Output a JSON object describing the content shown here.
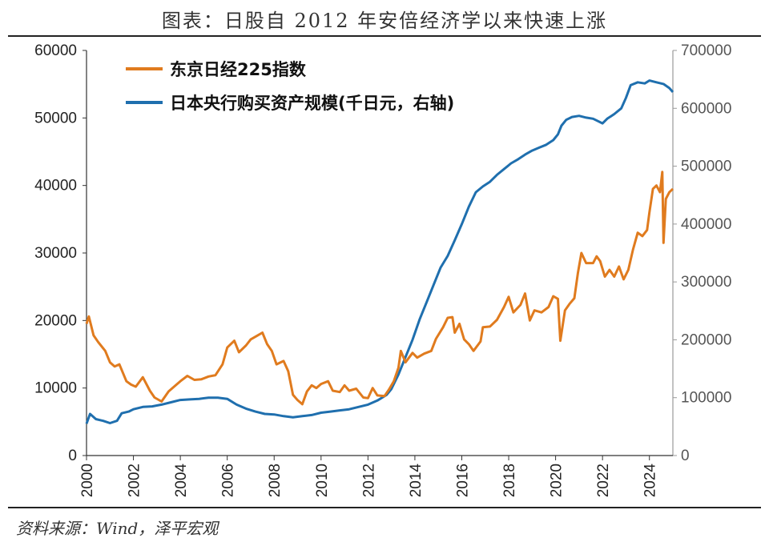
{
  "title": "图表：日股自 2012 年安倍经济学以来快速上涨",
  "source": "资料来源：Wind，泽平宏观",
  "chart_data": {
    "type": "line",
    "x_range": [
      2000,
      2025
    ],
    "x_ticks": [
      "2000",
      "2002",
      "2004",
      "2006",
      "2008",
      "2010",
      "2012",
      "2014",
      "2016",
      "2018",
      "2020",
      "2022",
      "2024"
    ],
    "y_left": {
      "ticks": [
        "0",
        "10000",
        "20000",
        "30000",
        "40000",
        "50000",
        "60000"
      ],
      "range": [
        0,
        60000
      ]
    },
    "y_right": {
      "ticks": [
        "0",
        "100000",
        "200000",
        "300000",
        "400000",
        "500000",
        "600000",
        "700000"
      ],
      "range": [
        0,
        700000
      ]
    },
    "legend_position": "top-left",
    "series": [
      {
        "name": "东京日经225指数",
        "axis": "left",
        "color": "#E07B1E",
        "points": [
          [
            2000.0,
            19500
          ],
          [
            2000.1,
            20600
          ],
          [
            2000.3,
            17800
          ],
          [
            2000.5,
            16800
          ],
          [
            2000.8,
            15500
          ],
          [
            2001.0,
            13800
          ],
          [
            2001.2,
            13200
          ],
          [
            2001.4,
            13500
          ],
          [
            2001.7,
            11000
          ],
          [
            2001.9,
            10500
          ],
          [
            2002.1,
            10200
          ],
          [
            2002.4,
            11600
          ],
          [
            2002.7,
            9600
          ],
          [
            2002.9,
            8600
          ],
          [
            2003.2,
            8000
          ],
          [
            2003.5,
            9500
          ],
          [
            2003.8,
            10400
          ],
          [
            2004.0,
            11000
          ],
          [
            2004.3,
            11800
          ],
          [
            2004.6,
            11200
          ],
          [
            2004.9,
            11300
          ],
          [
            2005.2,
            11700
          ],
          [
            2005.5,
            11900
          ],
          [
            2005.8,
            13500
          ],
          [
            2006.0,
            16000
          ],
          [
            2006.3,
            17000
          ],
          [
            2006.5,
            15300
          ],
          [
            2006.8,
            16300
          ],
          [
            2007.0,
            17200
          ],
          [
            2007.3,
            17800
          ],
          [
            2007.5,
            18200
          ],
          [
            2007.7,
            16500
          ],
          [
            2007.9,
            15500
          ],
          [
            2008.1,
            13500
          ],
          [
            2008.4,
            14000
          ],
          [
            2008.6,
            12500
          ],
          [
            2008.8,
            9000
          ],
          [
            2009.0,
            8200
          ],
          [
            2009.2,
            7600
          ],
          [
            2009.4,
            9500
          ],
          [
            2009.6,
            10400
          ],
          [
            2009.8,
            10000
          ],
          [
            2010.0,
            10600
          ],
          [
            2010.3,
            11000
          ],
          [
            2010.5,
            9600
          ],
          [
            2010.8,
            9400
          ],
          [
            2011.0,
            10400
          ],
          [
            2011.2,
            9600
          ],
          [
            2011.5,
            9900
          ],
          [
            2011.8,
            8600
          ],
          [
            2012.0,
            8500
          ],
          [
            2012.2,
            10000
          ],
          [
            2012.4,
            8900
          ],
          [
            2012.7,
            8800
          ],
          [
            2012.9,
            9800
          ],
          [
            2013.1,
            11000
          ],
          [
            2013.3,
            13000
          ],
          [
            2013.4,
            15500
          ],
          [
            2013.6,
            13800
          ],
          [
            2013.9,
            15200
          ],
          [
            2014.1,
            14500
          ],
          [
            2014.4,
            15100
          ],
          [
            2014.7,
            15500
          ],
          [
            2014.9,
            17300
          ],
          [
            2015.2,
            19000
          ],
          [
            2015.4,
            20400
          ],
          [
            2015.6,
            20500
          ],
          [
            2015.7,
            18200
          ],
          [
            2015.9,
            19500
          ],
          [
            2016.1,
            17200
          ],
          [
            2016.3,
            16500
          ],
          [
            2016.5,
            15500
          ],
          [
            2016.8,
            16900
          ],
          [
            2016.9,
            19000
          ],
          [
            2017.2,
            19100
          ],
          [
            2017.5,
            20100
          ],
          [
            2017.8,
            22000
          ],
          [
            2018.0,
            23500
          ],
          [
            2018.2,
            21200
          ],
          [
            2018.5,
            22300
          ],
          [
            2018.7,
            24000
          ],
          [
            2018.9,
            20000
          ],
          [
            2019.1,
            21500
          ],
          [
            2019.4,
            21200
          ],
          [
            2019.7,
            22000
          ],
          [
            2019.9,
            23600
          ],
          [
            2020.1,
            23200
          ],
          [
            2020.2,
            17000
          ],
          [
            2020.4,
            21500
          ],
          [
            2020.6,
            22500
          ],
          [
            2020.8,
            23300
          ],
          [
            2020.95,
            27000
          ],
          [
            2021.1,
            30000
          ],
          [
            2021.3,
            28500
          ],
          [
            2021.6,
            28500
          ],
          [
            2021.75,
            29500
          ],
          [
            2021.9,
            28800
          ],
          [
            2022.1,
            26500
          ],
          [
            2022.3,
            27500
          ],
          [
            2022.5,
            26500
          ],
          [
            2022.7,
            28000
          ],
          [
            2022.9,
            26100
          ],
          [
            2023.1,
            27500
          ],
          [
            2023.3,
            30500
          ],
          [
            2023.5,
            33000
          ],
          [
            2023.7,
            32500
          ],
          [
            2023.9,
            33400
          ],
          [
            2024.0,
            36000
          ],
          [
            2024.15,
            39500
          ],
          [
            2024.3,
            40000
          ],
          [
            2024.45,
            39000
          ],
          [
            2024.55,
            42000
          ],
          [
            2024.6,
            31500
          ],
          [
            2024.7,
            38000
          ],
          [
            2024.85,
            39000
          ],
          [
            2025.0,
            39500
          ]
        ]
      },
      {
        "name": "日本央行购买资产规模(千日元，右轴)",
        "axis": "right",
        "color": "#1F6FAE",
        "points": [
          [
            2000.0,
            55000
          ],
          [
            2000.15,
            72000
          ],
          [
            2000.4,
            63000
          ],
          [
            2000.7,
            60000
          ],
          [
            2001.0,
            56000
          ],
          [
            2001.3,
            60000
          ],
          [
            2001.5,
            73000
          ],
          [
            2001.8,
            76000
          ],
          [
            2002.0,
            80000
          ],
          [
            2002.4,
            84000
          ],
          [
            2002.8,
            85000
          ],
          [
            2003.2,
            88000
          ],
          [
            2003.6,
            92000
          ],
          [
            2004.0,
            96000
          ],
          [
            2004.4,
            97000
          ],
          [
            2004.8,
            98000
          ],
          [
            2005.2,
            100000
          ],
          [
            2005.6,
            100000
          ],
          [
            2006.0,
            98000
          ],
          [
            2006.4,
            88000
          ],
          [
            2006.8,
            81000
          ],
          [
            2007.2,
            76000
          ],
          [
            2007.6,
            72000
          ],
          [
            2008.0,
            71000
          ],
          [
            2008.4,
            68000
          ],
          [
            2008.8,
            66000
          ],
          [
            2009.2,
            68000
          ],
          [
            2009.6,
            70000
          ],
          [
            2010.0,
            74000
          ],
          [
            2010.4,
            76000
          ],
          [
            2010.8,
            78000
          ],
          [
            2011.2,
            80000
          ],
          [
            2011.6,
            84000
          ],
          [
            2012.0,
            88000
          ],
          [
            2012.4,
            95000
          ],
          [
            2012.8,
            105000
          ],
          [
            2013.0,
            115000
          ],
          [
            2013.3,
            140000
          ],
          [
            2013.6,
            170000
          ],
          [
            2013.9,
            200000
          ],
          [
            2014.2,
            235000
          ],
          [
            2014.5,
            265000
          ],
          [
            2014.8,
            295000
          ],
          [
            2015.1,
            325000
          ],
          [
            2015.4,
            345000
          ],
          [
            2015.7,
            372000
          ],
          [
            2016.0,
            400000
          ],
          [
            2016.3,
            430000
          ],
          [
            2016.6,
            455000
          ],
          [
            2016.9,
            465000
          ],
          [
            2017.2,
            473000
          ],
          [
            2017.5,
            485000
          ],
          [
            2017.8,
            495000
          ],
          [
            2018.1,
            505000
          ],
          [
            2018.4,
            512000
          ],
          [
            2018.7,
            520000
          ],
          [
            2019.0,
            527000
          ],
          [
            2019.3,
            532000
          ],
          [
            2019.6,
            537000
          ],
          [
            2019.9,
            545000
          ],
          [
            2020.1,
            555000
          ],
          [
            2020.25,
            570000
          ],
          [
            2020.45,
            580000
          ],
          [
            2020.7,
            585000
          ],
          [
            2021.0,
            587000
          ],
          [
            2021.3,
            584000
          ],
          [
            2021.6,
            582000
          ],
          [
            2021.8,
            578000
          ],
          [
            2022.0,
            574000
          ],
          [
            2022.2,
            582000
          ],
          [
            2022.5,
            590000
          ],
          [
            2022.8,
            600000
          ],
          [
            2023.0,
            618000
          ],
          [
            2023.2,
            640000
          ],
          [
            2023.5,
            645000
          ],
          [
            2023.8,
            643000
          ],
          [
            2024.0,
            648000
          ],
          [
            2024.3,
            645000
          ],
          [
            2024.6,
            642000
          ],
          [
            2024.85,
            635000
          ],
          [
            2025.0,
            628000
          ]
        ]
      }
    ]
  }
}
